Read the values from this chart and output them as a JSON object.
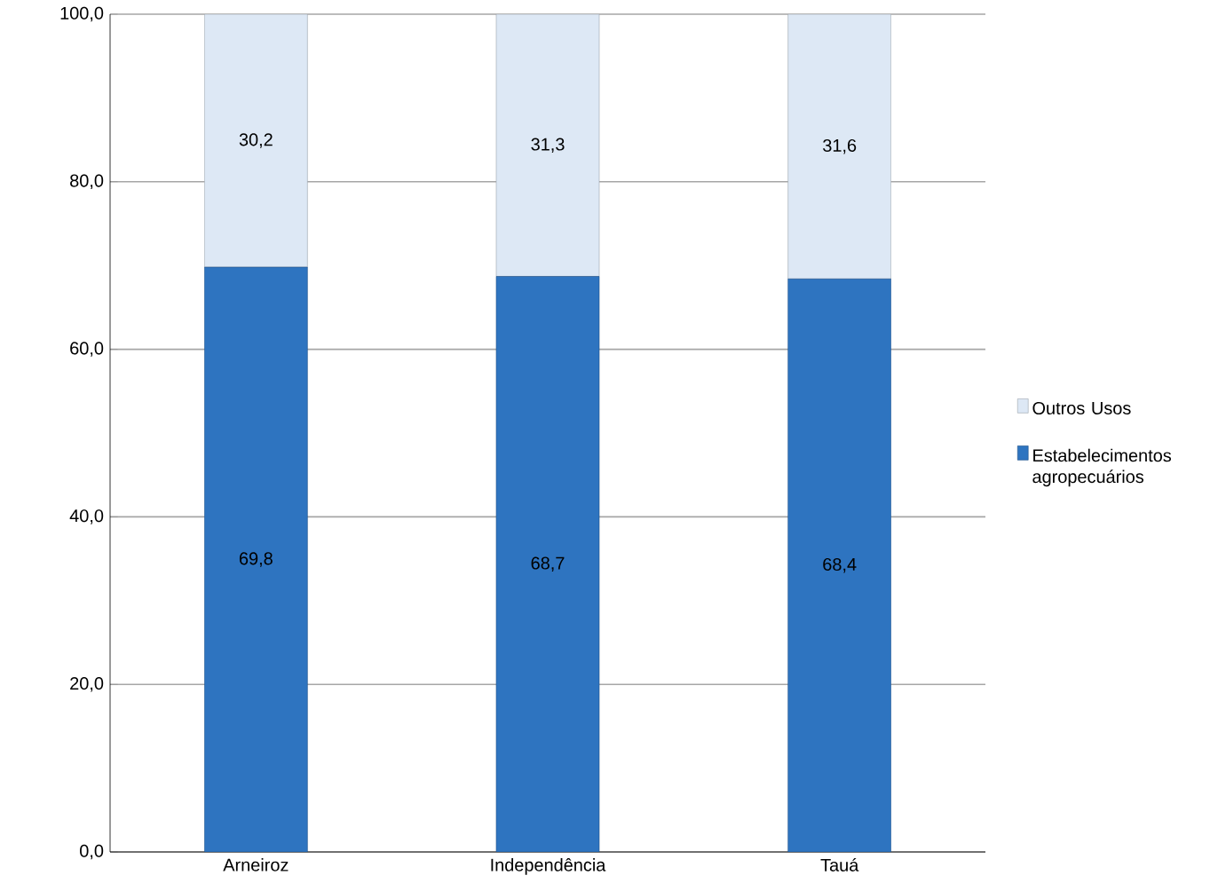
{
  "chart_data": {
    "type": "bar",
    "stacked": true,
    "categories": [
      "Arneiroz",
      "Independência",
      "Tauá"
    ],
    "series": [
      {
        "name": "Estabelecimentos agropecuários",
        "color": "#2e74c0",
        "values": [
          69.8,
          68.7,
          68.4
        ],
        "value_labels": [
          "69,8",
          "68,7",
          "68,4"
        ]
      },
      {
        "name": "Outros Usos",
        "color": "#dde8f5",
        "values": [
          30.2,
          31.3,
          31.6
        ],
        "value_labels": [
          "30,2",
          "31,3",
          "31,6"
        ]
      }
    ],
    "ylim": [
      0,
      100
    ],
    "yticks": [
      {
        "value": 0,
        "label": "0,0"
      },
      {
        "value": 20,
        "label": "20,0"
      },
      {
        "value": 40,
        "label": "40,0"
      },
      {
        "value": 60,
        "label": "60,0"
      },
      {
        "value": 80,
        "label": "80,0"
      },
      {
        "value": 100,
        "label": "100,0"
      }
    ],
    "grid": "y",
    "legend": "right"
  }
}
